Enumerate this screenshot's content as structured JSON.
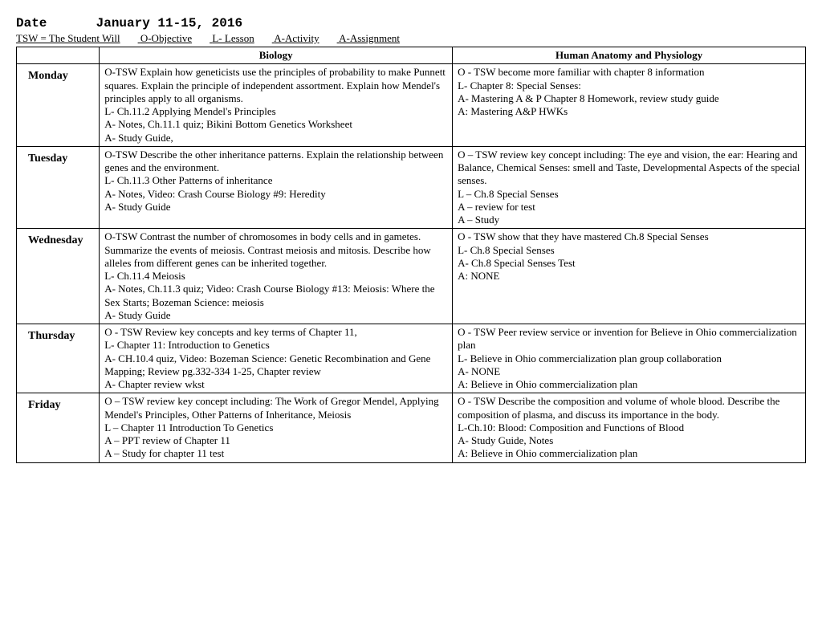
{
  "header": {
    "date_label": "Date",
    "date_value": "January 11-15, 2016",
    "legend": {
      "tsw": "TSW =  The Student Will",
      "o": "O-Objective",
      "l": "L- Lesson",
      "act": "A-Activity",
      "asg": "A-Assignment"
    }
  },
  "columns": {
    "day_blank": "",
    "biology": "Biology",
    "hap": "Human Anatomy and Physiology"
  },
  "days": {
    "mon": {
      "label": "Monday",
      "bio": "O-TSW Explain how geneticists use the principles of probability to make Punnett squares.  Explain the principle of independent assortment.  Explain how Mendel's principles apply to all organisms.\nL- Ch.11.2 Applying Mendel's Principles\nA- Notes, Ch.11.1 quiz; Bikini Bottom Genetics Worksheet\nA- Study Guide,",
      "hap": "O - TSW become more familiar with chapter 8 information\nL- Chapter 8: Special Senses:\nA- Mastering A & P Chapter 8 Homework, review study guide\nA: Mastering A&P HWKs"
    },
    "tue": {
      "label": "Tuesday",
      "bio": "O-TSW Describe the other inheritance patterns.  Explain the relationship between genes and the environment.\nL- Ch.11.3 Other Patterns of inheritance\nA- Notes, Video: Crash Course Biology #9: Heredity\nA- Study Guide",
      "hap": "O – TSW review key concept including: The eye and vision, the ear: Hearing and Balance, Chemical Senses: smell and Taste, Developmental Aspects of the special senses.\nL – Ch.8 Special Senses\nA – review for test\nA – Study"
    },
    "wed": {
      "label": "Wednesday",
      "bio": "O-TSW Contrast the number of chromosomes in body cells and in gametes.  Summarize the events of meiosis.  Contrast meiosis and mitosis.  Describe how alleles from different genes can be inherited together.\nL- Ch.11.4 Meiosis\nA- Notes, Ch.11.3 quiz; Video: Crash Course Biology #13: Meiosis: Where the Sex Starts; Bozeman Science: meiosis\nA- Study Guide",
      "hap": "O - TSW show that they have mastered Ch.8 Special Senses\nL- Ch.8 Special Senses\nA- Ch.8 Special Senses Test\nA: NONE"
    },
    "thu": {
      "label": "Thursday",
      "bio": "O - TSW Review key concepts and key terms of Chapter  11,\nL- Chapter  11: Introduction to Genetics\nA- CH.10.4 quiz, Video: Bozeman Science: Genetic Recombination and Gene Mapping; Review pg.332-334 1-25, Chapter  review\nA- Chapter  review wkst",
      "hap": "O - TSW Peer review service or invention for Believe in Ohio commercialization plan\nL- Believe in Ohio commercialization plan group collaboration\nA- NONE\nA: Believe in Ohio commercialization plan"
    },
    "fri": {
      "label": "Friday",
      "bio": "O – TSW review key concept including: The Work of Gregor Mendel, Applying Mendel's Principles, Other Patterns of Inheritance, Meiosis\nL – Chapter 11 Introduction To Genetics\nA – PPT review of Chapter 11\nA – Study for chapter 11 test",
      "hap": "O - TSW Describe the composition and volume of whole blood.  Describe the composition of plasma, and discuss its importance in the body.\nL-Ch.10: Blood: Composition and Functions of Blood\nA- Study Guide, Notes\nA: Believe in Ohio commercialization plan"
    }
  }
}
